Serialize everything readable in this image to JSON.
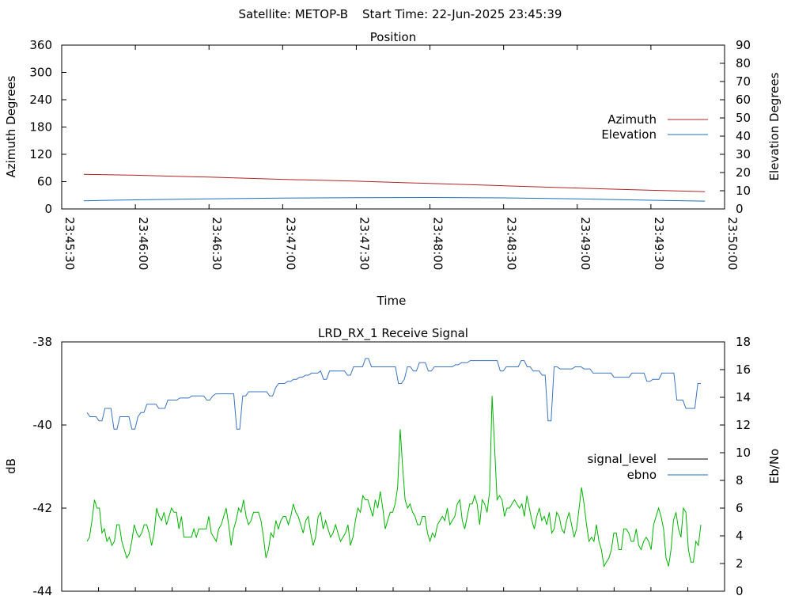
{
  "header": {
    "satellite_label": "Satellite: METOP-B",
    "start_time_label": "Start Time: 22-Jun-2025 23:45:39"
  },
  "colors": {
    "azimuth": "#b22222",
    "elevation": "#1f6fbf",
    "signal_level": "#000000",
    "ebno_legend": "#1f6fbf",
    "blue_trace": "#3a74c4",
    "green_trace": "#00b400"
  },
  "chart_data": [
    {
      "type": "line",
      "title": "Position",
      "xlabel": "Time",
      "ylabel": "Azimuth Degrees",
      "y2label": "Elevation Degrees",
      "x_ticks": [
        "23:45:30",
        "23:46:00",
        "23:46:30",
        "23:47:00",
        "23:47:30",
        "23:48:00",
        "23:48:30",
        "23:49:00",
        "23:49:30",
        "23:50:00"
      ],
      "xlim": [
        "23:45:30",
        "23:50:00"
      ],
      "ylim": [
        0,
        360
      ],
      "y2lim": [
        0,
        90
      ],
      "y_ticks": [
        0,
        60,
        120,
        180,
        240,
        300,
        360
      ],
      "y2_ticks": [
        0,
        10,
        20,
        30,
        40,
        50,
        60,
        70,
        80,
        90
      ],
      "legend_position": "right",
      "series": [
        {
          "name": "Azimuth",
          "axis": "left",
          "x": [
            "23:45:39",
            "23:46:00",
            "23:46:30",
            "23:47:00",
            "23:47:30",
            "23:48:00",
            "23:48:30",
            "23:49:00",
            "23:49:30",
            "23:49:52"
          ],
          "values": [
            76,
            74,
            70,
            65,
            61,
            56,
            51,
            46,
            41,
            38
          ]
        },
        {
          "name": "Elevation",
          "axis": "right",
          "x": [
            "23:45:39",
            "23:46:00",
            "23:46:30",
            "23:47:00",
            "23:47:30",
            "23:48:00",
            "23:48:30",
            "23:49:00",
            "23:49:30",
            "23:49:52"
          ],
          "values": [
            4.5,
            5,
            5.5,
            6,
            6.2,
            6.3,
            6.1,
            5.5,
            4.8,
            4.3
          ]
        }
      ]
    },
    {
      "type": "line",
      "title": "LRD_RX_1 Receive Signal",
      "ylabel": "dB",
      "y2label": "Eb/No",
      "ylim": [
        -44,
        -38
      ],
      "y2lim": [
        0,
        18
      ],
      "y_ticks": [
        -44,
        -42,
        -40,
        -38
      ],
      "y2_ticks": [
        0,
        2,
        4,
        6,
        8,
        10,
        12,
        14,
        16,
        18
      ],
      "legend_position": "right",
      "legend": [
        "signal_level",
        "ebno"
      ],
      "series": [
        {
          "name": "blue",
          "axis": "left",
          "values": [
            -39.7,
            -39.8,
            -39.8,
            -39.8,
            -39.9,
            -39.9,
            -39.6,
            -39.6,
            -39.6,
            -40.1,
            -40.1,
            -39.8,
            -39.8,
            -39.8,
            -39.8,
            -40.1,
            -40.1,
            -39.8,
            -39.7,
            -39.7,
            -39.5,
            -39.5,
            -39.5,
            -39.5,
            -39.6,
            -39.6,
            -39.6,
            -39.4,
            -39.4,
            -39.4,
            -39.4,
            -39.35,
            -39.35,
            -39.35,
            -39.35,
            -39.3,
            -39.3,
            -39.3,
            -39.3,
            -39.3,
            -39.4,
            -39.4,
            -39.3,
            -39.25,
            -39.25,
            -39.25,
            -39.25,
            -39.25,
            -39.25,
            -39.25,
            -40.1,
            -40.1,
            -39.3,
            -39.3,
            -39.2,
            -39.2,
            -39.2,
            -39.2,
            -39.2,
            -39.2,
            -39.2,
            -39.3,
            -39.3,
            -39.1,
            -39.0,
            -39.0,
            -39.0,
            -38.95,
            -38.95,
            -38.9,
            -38.9,
            -38.85,
            -38.85,
            -38.8,
            -38.8,
            -38.75,
            -38.75,
            -38.75,
            -38.7,
            -38.9,
            -38.9,
            -38.7,
            -38.7,
            -38.7,
            -38.7,
            -38.7,
            -38.7,
            -38.8,
            -38.8,
            -38.6,
            -38.6,
            -38.6,
            -38.6,
            -38.4,
            -38.4,
            -38.6,
            -38.6,
            -38.6,
            -38.6,
            -38.6,
            -38.6,
            -38.6,
            -38.6,
            -38.6,
            -39.0,
            -39.0,
            -38.9,
            -38.6,
            -38.6,
            -38.7,
            -38.7,
            -38.5,
            -38.5,
            -38.5,
            -38.7,
            -38.7,
            -38.6,
            -38.6,
            -38.6,
            -38.6,
            -38.6,
            -38.6,
            -38.6,
            -38.55,
            -38.55,
            -38.5,
            -38.5,
            -38.5,
            -38.45,
            -38.45,
            -38.45,
            -38.45,
            -38.45,
            -38.45,
            -38.45,
            -38.45,
            -38.45,
            -38.45,
            -38.7,
            -38.7,
            -38.6,
            -38.6,
            -38.6,
            -38.6,
            -38.6,
            -38.45,
            -38.45,
            -38.6,
            -38.6,
            -38.7,
            -38.7,
            -38.7,
            -38.8,
            -38.8,
            -39.9,
            -39.9,
            -38.6,
            -38.6,
            -38.65,
            -38.65,
            -38.65,
            -38.65,
            -38.65,
            -38.6,
            -38.6,
            -38.6,
            -38.65,
            -38.65,
            -38.65,
            -38.75,
            -38.75,
            -38.75,
            -38.75,
            -38.75,
            -38.75,
            -38.75,
            -38.85,
            -38.85,
            -38.85,
            -38.85,
            -38.85,
            -38.85,
            -38.75,
            -38.75,
            -38.75,
            -38.75,
            -38.75,
            -38.95,
            -38.95,
            -38.9,
            -38.9,
            -38.9,
            -38.75,
            -38.75,
            -38.75,
            -38.75,
            -38.75,
            -39.4,
            -39.4,
            -39.4,
            -39.6,
            -39.6,
            -39.6,
            -39.6,
            -39.0,
            -39.0
          ]
        },
        {
          "name": "green",
          "axis": "left",
          "values": [
            -42.8,
            -42.7,
            -42.3,
            -41.8,
            -42.0,
            -42.0,
            -42.6,
            -42.5,
            -42.8,
            -42.7,
            -42.9,
            -42.8,
            -42.4,
            -42.4,
            -42.8,
            -43.0,
            -43.2,
            -43.1,
            -42.8,
            -42.4,
            -42.6,
            -42.7,
            -42.6,
            -42.4,
            -42.4,
            -42.6,
            -42.9,
            -42.6,
            -42.0,
            -42.2,
            -42.3,
            -42.1,
            -42.4,
            -42.2,
            -42.0,
            -42.1,
            -42.1,
            -42.5,
            -42.2,
            -42.7,
            -42.7,
            -42.7,
            -42.7,
            -42.5,
            -42.7,
            -42.5,
            -42.5,
            -42.5,
            -42.5,
            -42.2,
            -42.6,
            -42.7,
            -42.8,
            -42.5,
            -42.4,
            -42.2,
            -42.0,
            -42.4,
            -42.9,
            -42.5,
            -42.3,
            -42.0,
            -42.1,
            -41.8,
            -42.2,
            -42.4,
            -42.3,
            -42.1,
            -42.1,
            -42.1,
            -42.3,
            -42.7,
            -43.2,
            -43.0,
            -42.6,
            -42.7,
            -42.3,
            -42.5,
            -42.3,
            -42.2,
            -42.2,
            -42.4,
            -42.2,
            -41.9,
            -42.1,
            -42.2,
            -42.4,
            -42.6,
            -42.3,
            -42.2,
            -42.6,
            -42.9,
            -42.7,
            -42.2,
            -42.1,
            -42.5,
            -42.3,
            -42.5,
            -42.7,
            -42.6,
            -42.4,
            -42.6,
            -42.8,
            -42.7,
            -42.6,
            -42.4,
            -42.9,
            -42.7,
            -42.3,
            -42.0,
            -42.1,
            -41.7,
            -41.8,
            -41.8,
            -42.0,
            -42.2,
            -41.8,
            -42.0,
            -41.6,
            -42.0,
            -42.5,
            -42.3,
            -42.1,
            -42.1,
            -41.9,
            -41.5,
            -40.1,
            -41.0,
            -41.8,
            -42.0,
            -41.9,
            -42.1,
            -42.2,
            -42.4,
            -42.4,
            -42.2,
            -42.2,
            -42.6,
            -42.8,
            -42.6,
            -42.7,
            -42.4,
            -42.3,
            -42.2,
            -42.3,
            -42.0,
            -42.4,
            -42.3,
            -42.2,
            -41.9,
            -41.8,
            -42.3,
            -42.5,
            -42.2,
            -41.9,
            -41.9,
            -41.7,
            -41.9,
            -42.4,
            -41.8,
            -41.9,
            -42.1,
            -41.6,
            -39.3,
            -40.5,
            -41.8,
            -41.7,
            -41.8,
            -42.2,
            -42.0,
            -42.0,
            -41.9,
            -41.8,
            -41.9,
            -42.0,
            -41.9,
            -42.2,
            -41.7,
            -42.0,
            -42.3,
            -42.5,
            -42.2,
            -42.0,
            -42.3,
            -42.2,
            -42.4,
            -42.1,
            -42.6,
            -42.5,
            -42.1,
            -42.2,
            -42.5,
            -42.6,
            -42.3,
            -42.1,
            -42.4,
            -42.7,
            -42.5,
            -42.0,
            -41.5,
            -41.9,
            -42.4,
            -42.8,
            -42.7,
            -42.8,
            -42.4,
            -42.8,
            -43.0,
            -43.4,
            -43.3,
            -43.2,
            -43.0,
            -42.6,
            -42.6,
            -43.0,
            -43.0,
            -42.5,
            -42.5,
            -42.6,
            -42.8,
            -42.8,
            -42.5,
            -42.9,
            -43.0,
            -42.8,
            -42.7,
            -42.8,
            -43.0,
            -42.4,
            -42.2,
            -42.0,
            -42.2,
            -42.5,
            -43.2,
            -43.4,
            -43.0,
            -42.3,
            -42.1,
            -42.5,
            -42.7,
            -42.0,
            -42.1,
            -43.0,
            -43.3,
            -43.3,
            -42.8,
            -42.9,
            -42.4
          ]
        }
      ]
    }
  ]
}
